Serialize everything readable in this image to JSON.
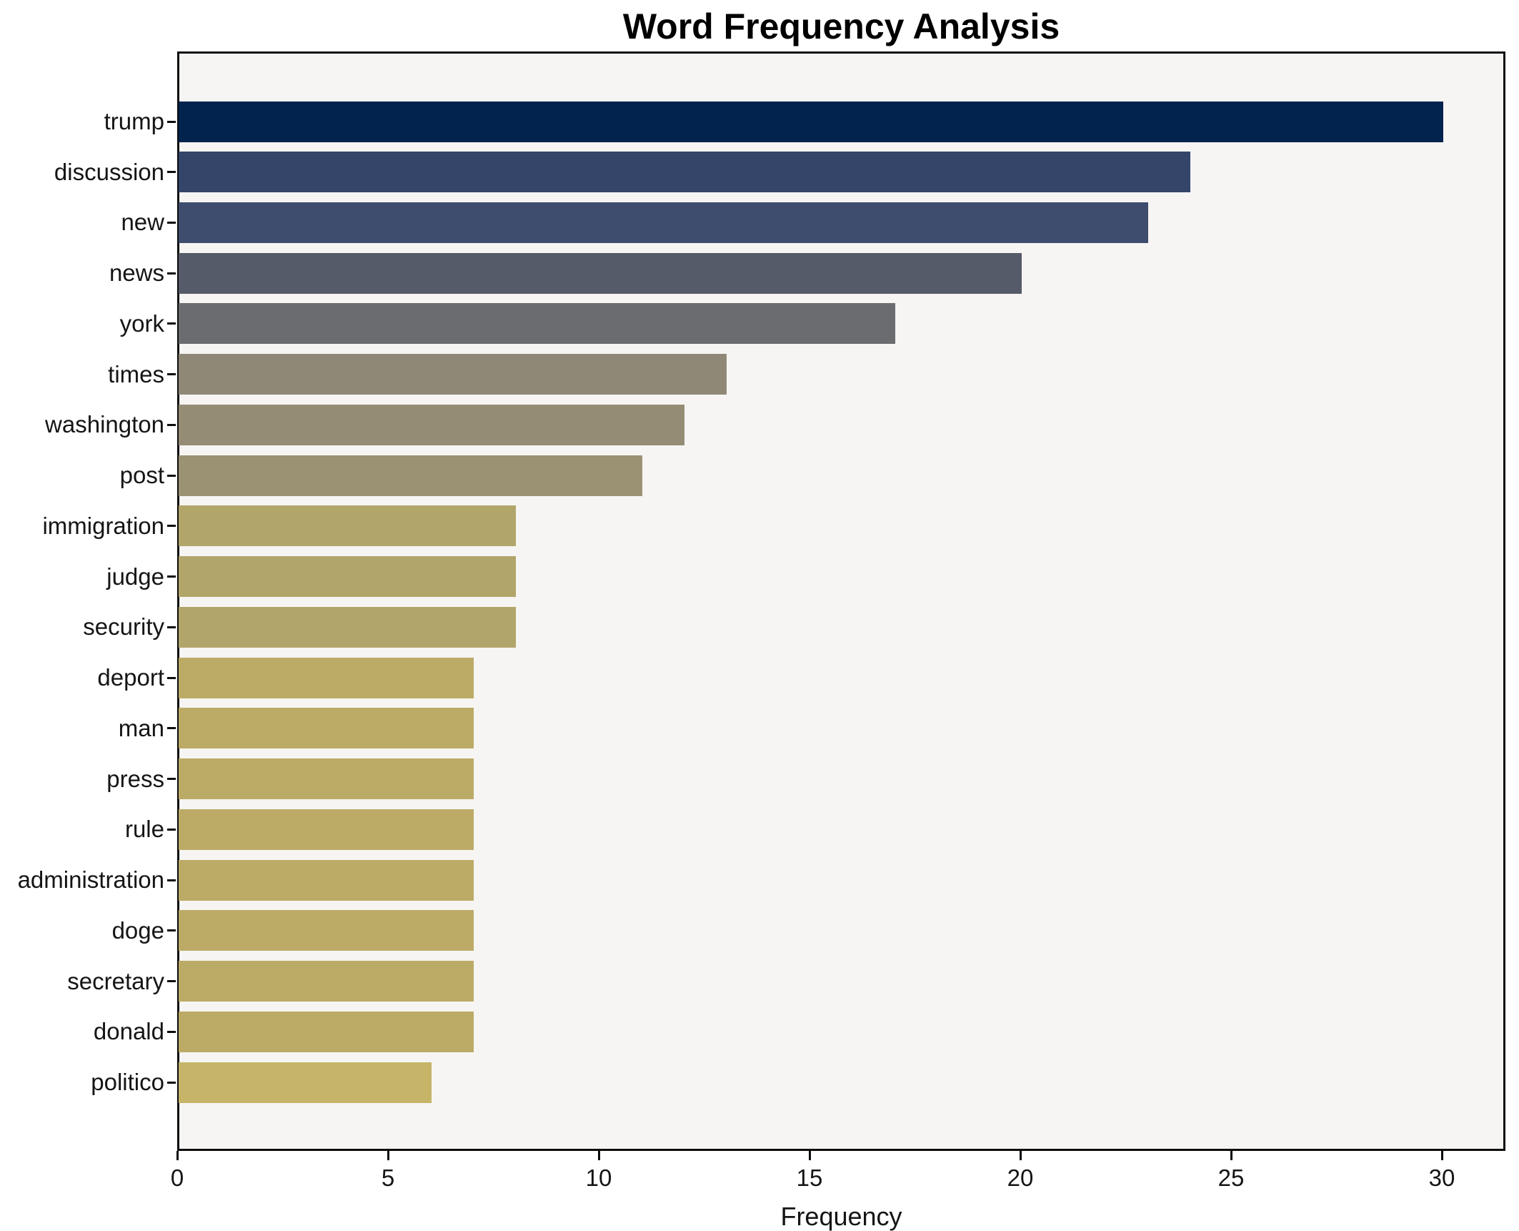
{
  "chart_data": {
    "type": "bar",
    "orientation": "horizontal",
    "title": "Word Frequency Analysis",
    "xlabel": "Frequency",
    "ylabel": "",
    "categories": [
      "trump",
      "discussion",
      "new",
      "news",
      "york",
      "times",
      "washington",
      "post",
      "immigration",
      "judge",
      "security",
      "deport",
      "man",
      "press",
      "rule",
      "administration",
      "doge",
      "secretary",
      "donald",
      "politico"
    ],
    "values": [
      30,
      24,
      23,
      20,
      17,
      13,
      12,
      11,
      8,
      8,
      8,
      7,
      7,
      7,
      7,
      7,
      7,
      7,
      7,
      6
    ],
    "bar_colors": [
      "#02234e",
      "#344569",
      "#3e4d6e",
      "#565b6a",
      "#6b6c6f",
      "#8f8877",
      "#948c74",
      "#9b9274",
      "#b2a56a",
      "#b2a56a",
      "#b2a56a",
      "#bcab67",
      "#bcab67",
      "#bcab67",
      "#bcab67",
      "#bcab67",
      "#bcab67",
      "#bcab67",
      "#bcab67",
      "#c6b468"
    ],
    "xticks": [
      0,
      5,
      10,
      15,
      20,
      25,
      30
    ],
    "xlim": [
      0,
      31.5
    ],
    "grid": false,
    "legend": false,
    "colormap": "cividis",
    "plot_bg": "#f6f5f3",
    "fig_bg": "#ffffff",
    "spine_color": "#0d0d0d",
    "text_color": "#151515"
  }
}
